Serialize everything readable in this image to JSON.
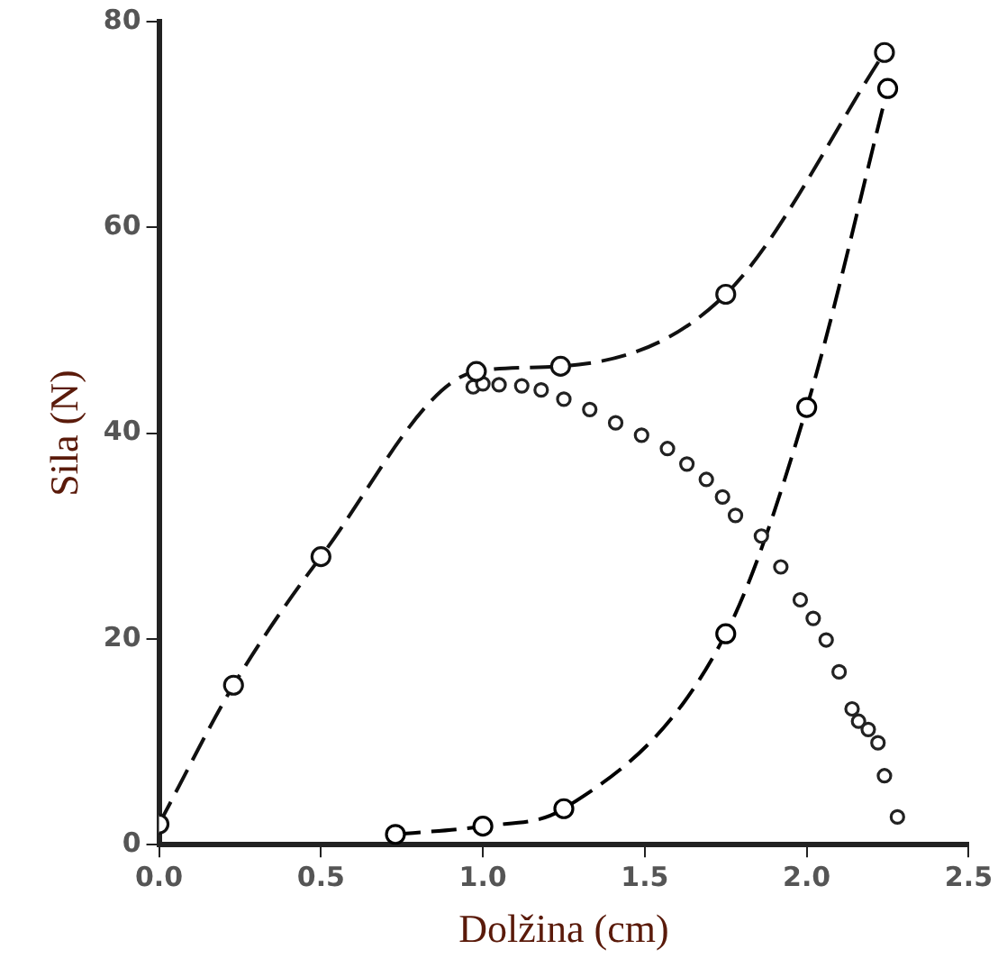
{
  "chart_data": {
    "type": "line",
    "xlabel": "Dolžina (cm)",
    "ylabel": "Sila (N)",
    "xlim": [
      0,
      2.5
    ],
    "xticks": [
      {
        "value": 0,
        "label": "0.0"
      },
      {
        "value": 0.5,
        "label": "0.5"
      },
      {
        "value": 1,
        "label": "1.0"
      },
      {
        "value": 1.5,
        "label": "1.5"
      },
      {
        "value": 2,
        "label": "2.0"
      },
      {
        "value": 2.5,
        "label": "2.5"
      }
    ],
    "ylim": [
      0,
      80
    ],
    "yticks": [
      0,
      20,
      40,
      60,
      80
    ],
    "grid": false,
    "legend": false,
    "marker": "circle",
    "series": [
      {
        "type": "line",
        "line_style": "dashed",
        "color": "#111111",
        "x": [
          0,
          0.23,
          0.5,
          0.98,
          1.24,
          1.75,
          2.24
        ],
        "values": [
          2,
          15.5,
          28,
          46,
          46.5,
          53.5,
          77
        ]
      },
      {
        "type": "scatter",
        "color": "#222222",
        "x": [
          0.97,
          1.0,
          1.05,
          1.12,
          1.18,
          1.25,
          1.33,
          1.41,
          1.49,
          1.57,
          1.63,
          1.69,
          1.74,
          1.78,
          1.86,
          1.92,
          1.98,
          2.02,
          2.06,
          2.1,
          2.14,
          2.16,
          2.19,
          2.22,
          2.24,
          2.28
        ],
        "values": [
          44.5,
          44.8,
          44.7,
          44.6,
          44.2,
          43.3,
          42.3,
          41,
          39.8,
          38.5,
          37,
          35.5,
          33.8,
          32,
          30,
          27,
          23.8,
          22,
          19.9,
          16.8,
          13.2,
          12,
          11.2,
          9.9,
          6.7,
          2.7
        ]
      },
      {
        "type": "line",
        "line_style": "dashed",
        "color": "#000000",
        "x": [
          0.73,
          1.0,
          1.25,
          1.75,
          2.0,
          2.25
        ],
        "values": [
          1,
          1.8,
          3.5,
          20.5,
          42.5,
          73.5
        ]
      }
    ]
  }
}
